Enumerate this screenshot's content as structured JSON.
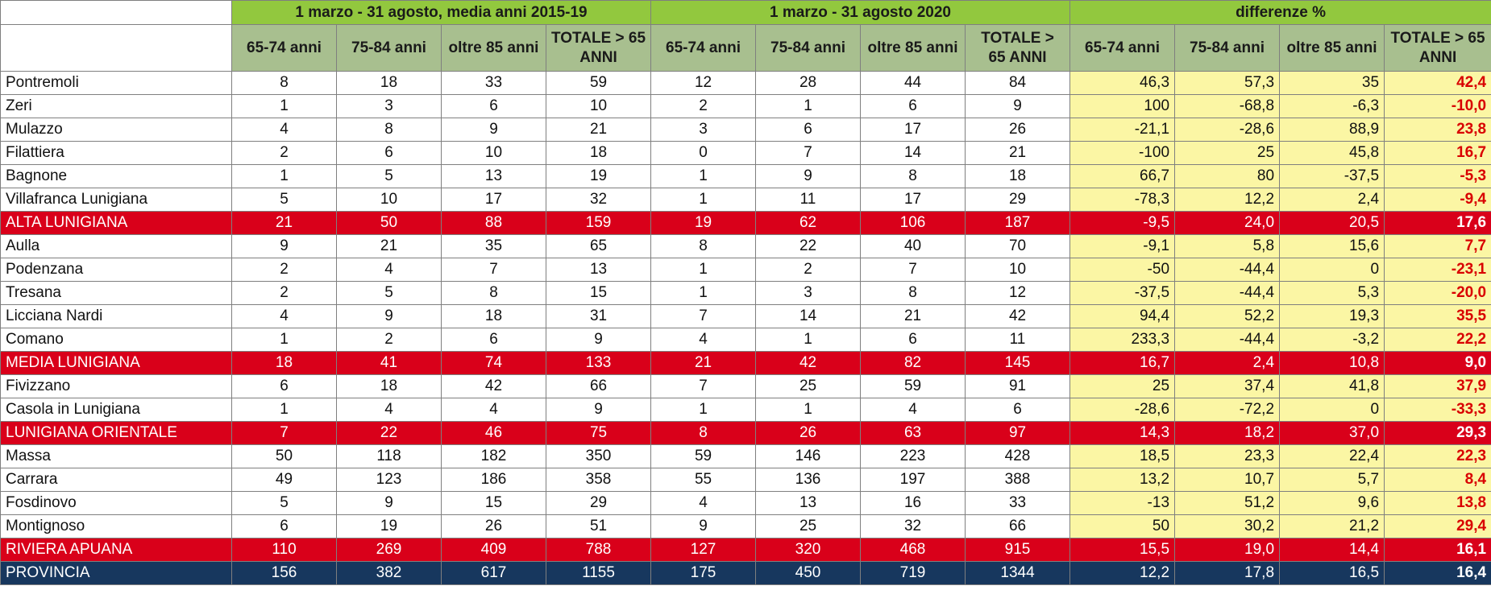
{
  "colors": {
    "header_green": "#92c83e",
    "subheader_green": "#a8bf8f",
    "diff_yellow": "#fbf6a4",
    "diff_red_text": "#d90000",
    "subtotal_red": "#d9001a",
    "province_navy": "#17375e"
  },
  "groups": [
    "1 marzo - 31 agosto,  media anni 2015-19",
    "1 marzo - 31 agosto 2020",
    "differenze %"
  ],
  "subheaders": [
    "65-74 anni",
    "75-84 anni",
    "oltre 85 anni",
    "TOTALE > 65 ANNI"
  ],
  "rows": [
    {
      "type": "normal",
      "name": "Pontremoli",
      "avg": [
        "8",
        "18",
        "33",
        "59"
      ],
      "y2020": [
        "12",
        "28",
        "44",
        "84"
      ],
      "diff": [
        "46,3",
        "57,3",
        "35",
        "42,4"
      ]
    },
    {
      "type": "normal",
      "name": "Zeri",
      "avg": [
        "1",
        "3",
        "6",
        "10"
      ],
      "y2020": [
        "2",
        "1",
        "6",
        "9"
      ],
      "diff": [
        "100",
        "-68,8",
        "-6,3",
        "-10,0"
      ]
    },
    {
      "type": "normal",
      "name": "Mulazzo",
      "avg": [
        "4",
        "8",
        "9",
        "21"
      ],
      "y2020": [
        "3",
        "6",
        "17",
        "26"
      ],
      "diff": [
        "-21,1",
        "-28,6",
        "88,9",
        "23,8"
      ]
    },
    {
      "type": "normal",
      "name": "Filattiera",
      "avg": [
        "2",
        "6",
        "10",
        "18"
      ],
      "y2020": [
        "0",
        "7",
        "14",
        "21"
      ],
      "diff": [
        "-100",
        "25",
        "45,8",
        "16,7"
      ]
    },
    {
      "type": "normal",
      "name": "Bagnone",
      "avg": [
        "1",
        "5",
        "13",
        "19"
      ],
      "y2020": [
        "1",
        "9",
        "8",
        "18"
      ],
      "diff": [
        "66,7",
        "80",
        "-37,5",
        "-5,3"
      ]
    },
    {
      "type": "normal",
      "name": "Villafranca Lunigiana",
      "avg": [
        "5",
        "10",
        "17",
        "32"
      ],
      "y2020": [
        "1",
        "11",
        "17",
        "29"
      ],
      "diff": [
        "-78,3",
        "12,2",
        "2,4",
        "-9,4"
      ]
    },
    {
      "type": "sum",
      "name": "ALTA LUNIGIANA",
      "avg": [
        "21",
        "50",
        "88",
        "159"
      ],
      "y2020": [
        "19",
        "62",
        "106",
        "187"
      ],
      "diff": [
        "-9,5",
        "24,0",
        "20,5",
        "17,6"
      ]
    },
    {
      "type": "normal",
      "name": "Aulla",
      "avg": [
        "9",
        "21",
        "35",
        "65"
      ],
      "y2020": [
        "8",
        "22",
        "40",
        "70"
      ],
      "diff": [
        "-9,1",
        "5,8",
        "15,6",
        "7,7"
      ]
    },
    {
      "type": "normal",
      "name": "Podenzana",
      "avg": [
        "2",
        "4",
        "7",
        "13"
      ],
      "y2020": [
        "1",
        "2",
        "7",
        "10"
      ],
      "diff": [
        "-50",
        "-44,4",
        "0",
        "-23,1"
      ]
    },
    {
      "type": "normal",
      "name": "Tresana",
      "avg": [
        "2",
        "5",
        "8",
        "15"
      ],
      "y2020": [
        "1",
        "3",
        "8",
        "12"
      ],
      "diff": [
        "-37,5",
        "-44,4",
        "5,3",
        "-20,0"
      ]
    },
    {
      "type": "normal",
      "name": "Licciana Nardi",
      "avg": [
        "4",
        "9",
        "18",
        "31"
      ],
      "y2020": [
        "7",
        "14",
        "21",
        "42"
      ],
      "diff": [
        "94,4",
        "52,2",
        "19,3",
        "35,5"
      ]
    },
    {
      "type": "normal",
      "name": "Comano",
      "avg": [
        "1",
        "2",
        "6",
        "9"
      ],
      "y2020": [
        "4",
        "1",
        "6",
        "11"
      ],
      "diff": [
        "233,3",
        "-44,4",
        "-3,2",
        "22,2"
      ]
    },
    {
      "type": "sum",
      "name": "MEDIA LUNIGIANA",
      "avg": [
        "18",
        "41",
        "74",
        "133"
      ],
      "y2020": [
        "21",
        "42",
        "82",
        "145"
      ],
      "diff": [
        "16,7",
        "2,4",
        "10,8",
        "9,0"
      ]
    },
    {
      "type": "normal",
      "name": "Fivizzano",
      "avg": [
        "6",
        "18",
        "42",
        "66"
      ],
      "y2020": [
        "7",
        "25",
        "59",
        "91"
      ],
      "diff": [
        "25",
        "37,4",
        "41,8",
        "37,9"
      ]
    },
    {
      "type": "normal",
      "name": "Casola in Lunigiana",
      "avg": [
        "1",
        "4",
        "4",
        "9"
      ],
      "y2020": [
        "1",
        "1",
        "4",
        "6"
      ],
      "diff": [
        "-28,6",
        "-72,2",
        "0",
        "-33,3"
      ]
    },
    {
      "type": "sum",
      "name": "LUNIGIANA ORIENTALE",
      "avg": [
        "7",
        "22",
        "46",
        "75"
      ],
      "y2020": [
        "8",
        "26",
        "63",
        "97"
      ],
      "diff": [
        "14,3",
        "18,2",
        "37,0",
        "29,3"
      ]
    },
    {
      "type": "normal",
      "name": "Massa",
      "avg": [
        "50",
        "118",
        "182",
        "350"
      ],
      "y2020": [
        "59",
        "146",
        "223",
        "428"
      ],
      "diff": [
        "18,5",
        "23,3",
        "22,4",
        "22,3"
      ]
    },
    {
      "type": "normal",
      "name": "Carrara",
      "avg": [
        "49",
        "123",
        "186",
        "358"
      ],
      "y2020": [
        "55",
        "136",
        "197",
        "388"
      ],
      "diff": [
        "13,2",
        "10,7",
        "5,7",
        "8,4"
      ]
    },
    {
      "type": "normal",
      "name": "Fosdinovo",
      "avg": [
        "5",
        "9",
        "15",
        "29"
      ],
      "y2020": [
        "4",
        "13",
        "16",
        "33"
      ],
      "diff": [
        "-13",
        "51,2",
        "9,6",
        "13,8"
      ]
    },
    {
      "type": "normal",
      "name": "Montignoso",
      "avg": [
        "6",
        "19",
        "26",
        "51"
      ],
      "y2020": [
        "9",
        "25",
        "32",
        "66"
      ],
      "diff": [
        "50",
        "30,2",
        "21,2",
        "29,4"
      ]
    },
    {
      "type": "sum",
      "name": "RIVIERA APUANA",
      "avg": [
        "110",
        "269",
        "409",
        "788"
      ],
      "y2020": [
        "127",
        "320",
        "468",
        "915"
      ],
      "diff": [
        "15,5",
        "19,0",
        "14,4",
        "16,1"
      ]
    },
    {
      "type": "prov",
      "name": "PROVINCIA",
      "avg": [
        "156",
        "382",
        "617",
        "1155"
      ],
      "y2020": [
        "175",
        "450",
        "719",
        "1344"
      ],
      "diff": [
        "12,2",
        "17,8",
        "16,5",
        "16,4"
      ]
    }
  ]
}
